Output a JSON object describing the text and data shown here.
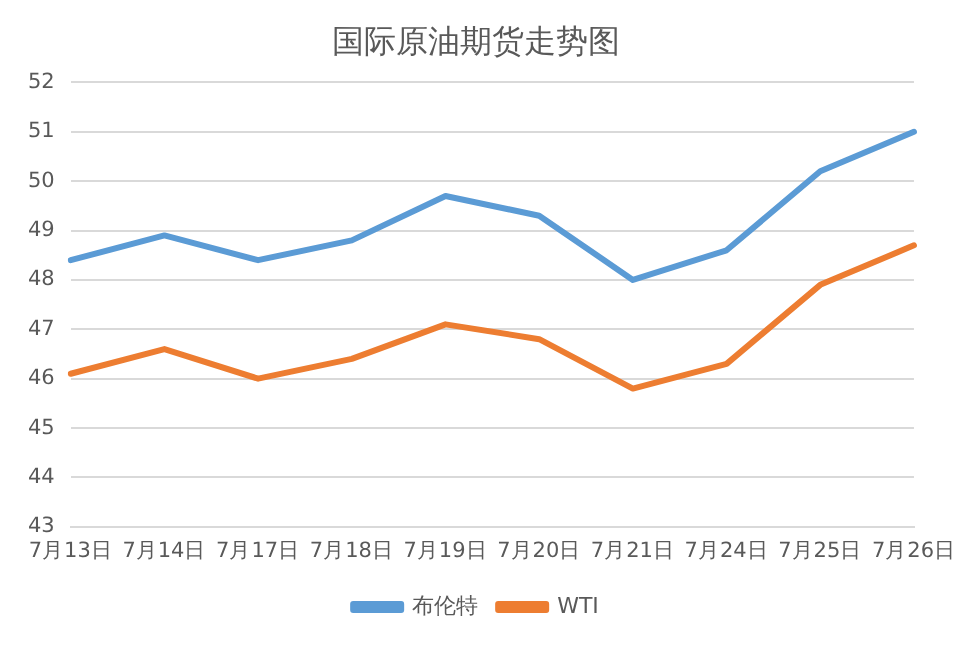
{
  "chart_data": {
    "type": "line",
    "title": "国际原油期货走势图",
    "categories": [
      "7月13日",
      "7月14日",
      "7月17日",
      "7月18日",
      "7月19日",
      "7月20日",
      "7月21日",
      "7月24日",
      "7月25日",
      "7月26日"
    ],
    "series": [
      {
        "name": "布伦特",
        "color": "#5b9bd5",
        "values": [
          48.4,
          48.9,
          48.4,
          48.8,
          49.7,
          49.3,
          48.0,
          48.6,
          50.2,
          51.0
        ]
      },
      {
        "name": "WTI",
        "color": "#ed7d31",
        "values": [
          46.1,
          46.6,
          46.0,
          46.4,
          47.1,
          46.8,
          45.8,
          46.3,
          47.9,
          48.7
        ]
      }
    ],
    "ylim": [
      43,
      52
    ],
    "yticks": [
      43,
      44,
      45,
      46,
      47,
      48,
      49,
      50,
      51,
      52
    ],
    "grid": "y",
    "legend": "bottom",
    "marker": "none",
    "line_style": "solid"
  }
}
